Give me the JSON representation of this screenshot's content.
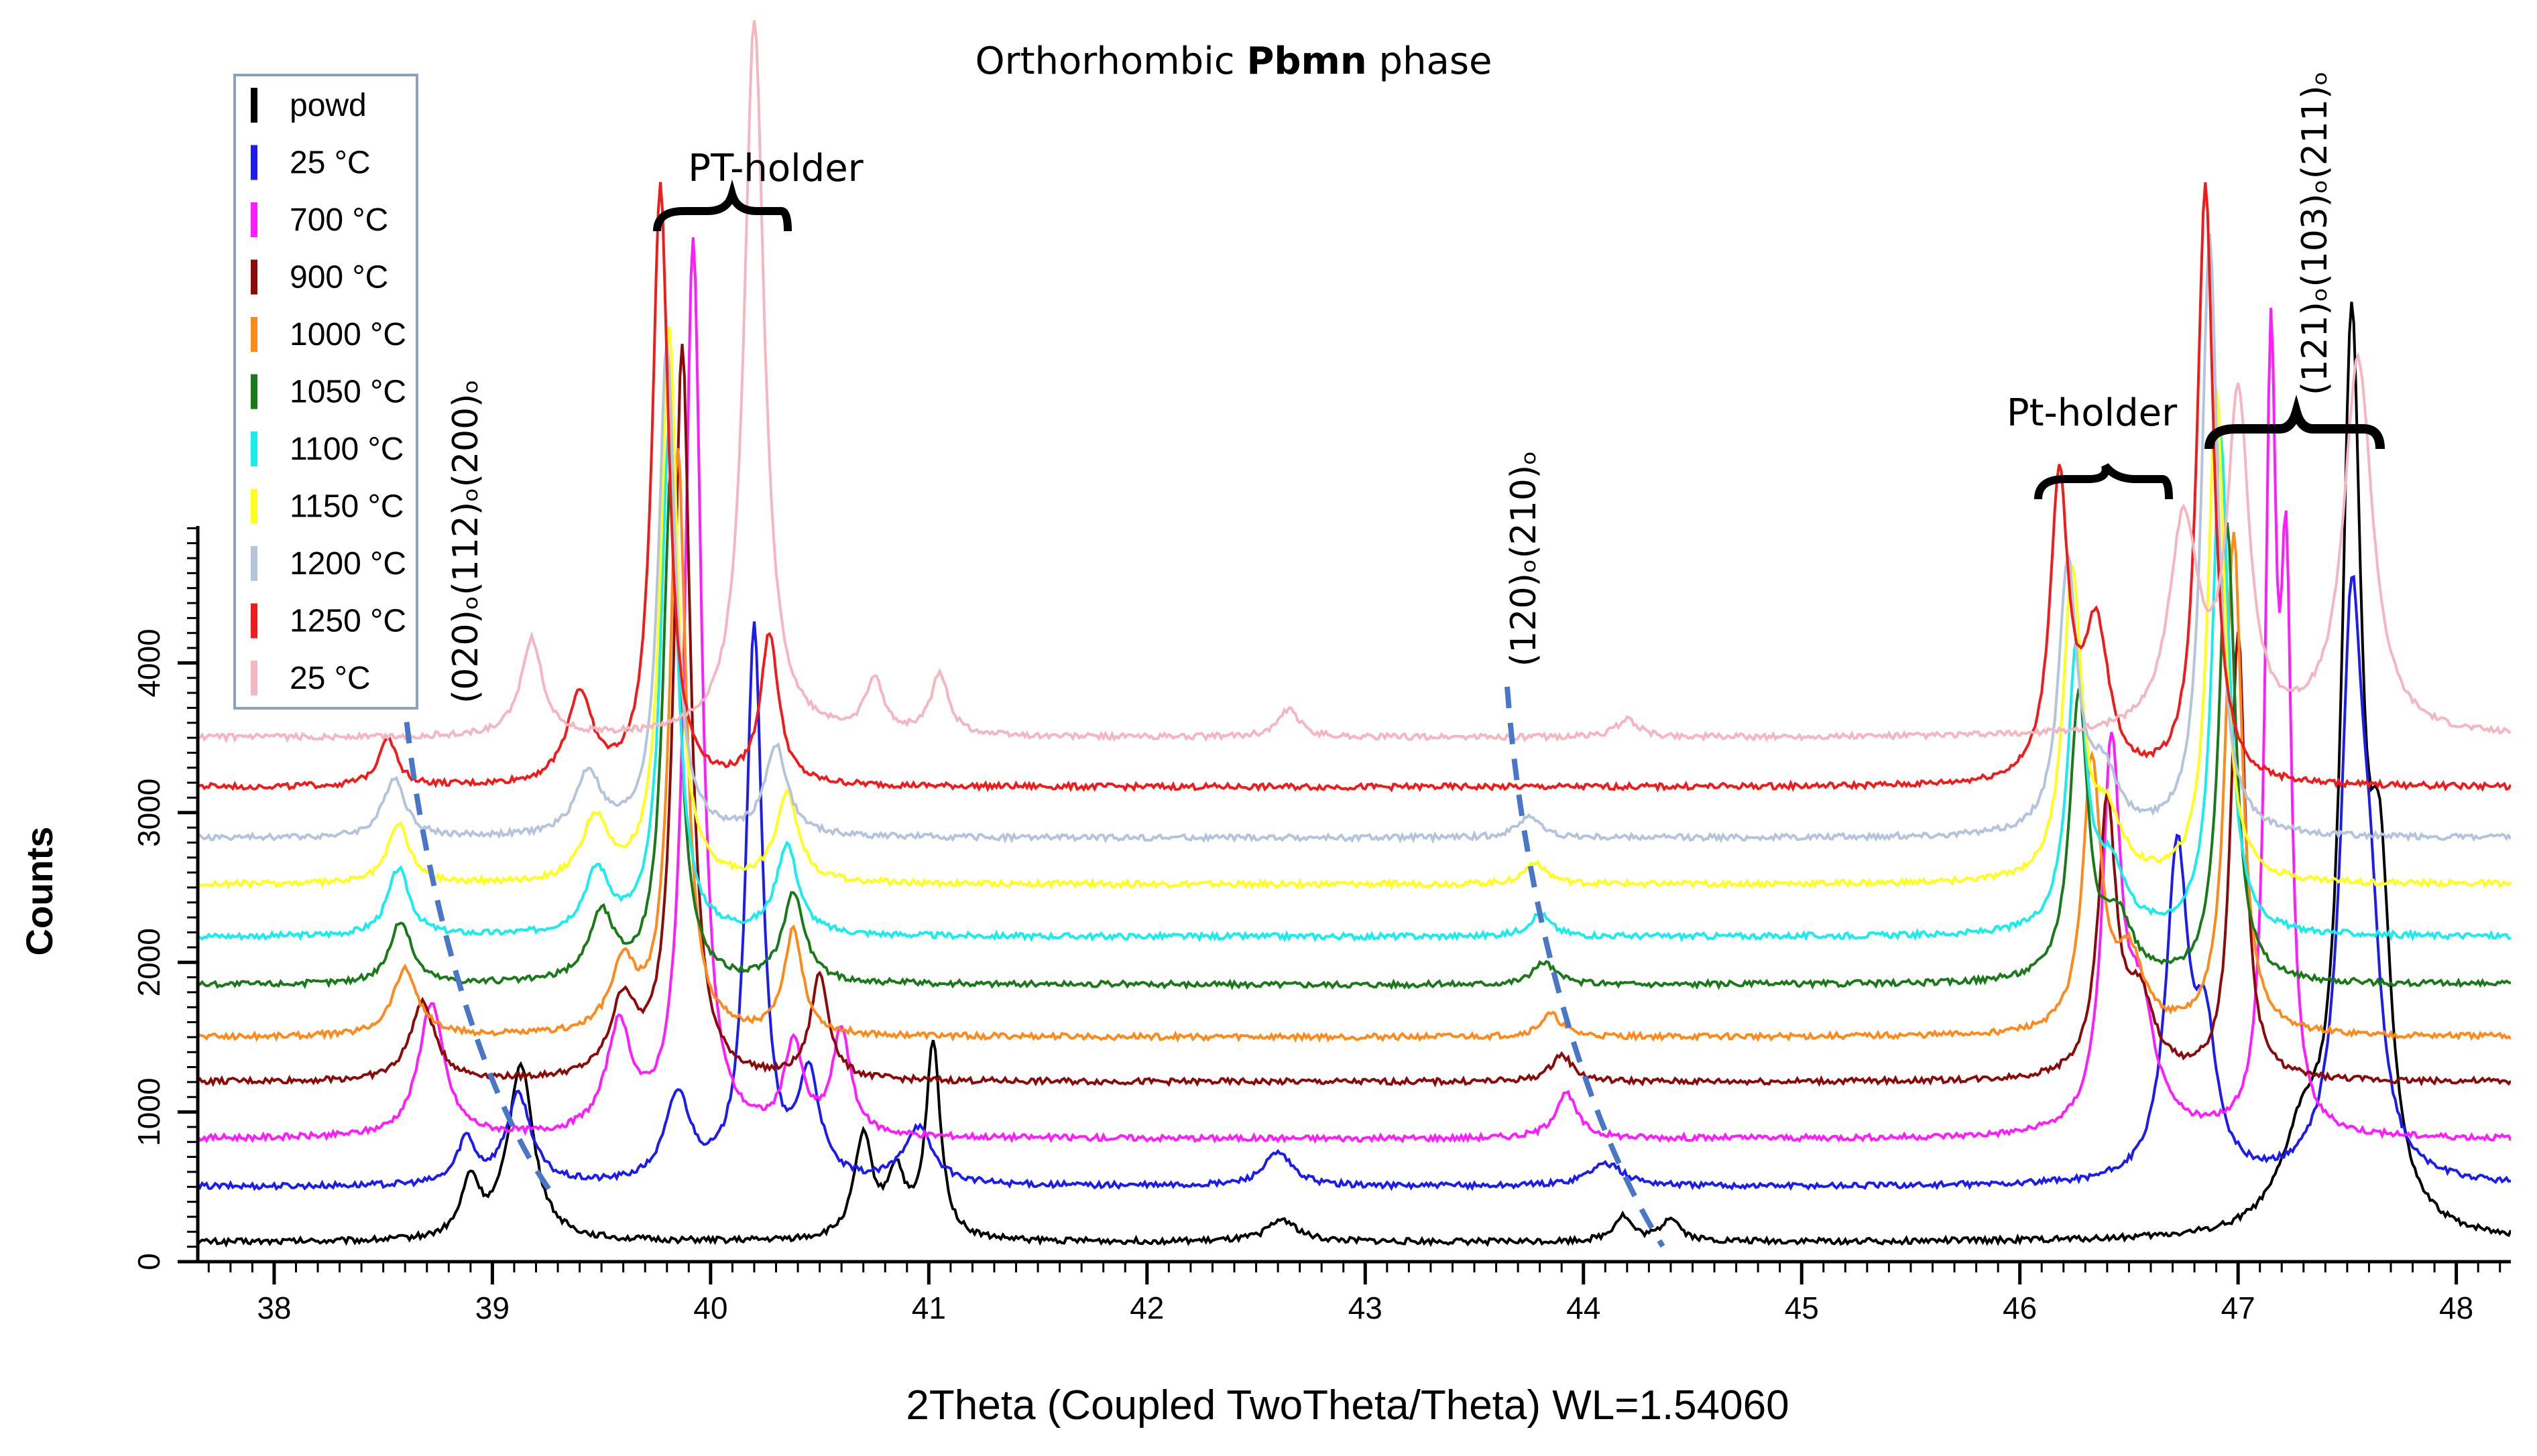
{
  "chart_data": {
    "type": "line",
    "title_parts": [
      "Orthorhombic ",
      "Pbmn",
      " phase"
    ],
    "xlabel": "2Theta (Coupled TwoTheta/Theta) WL=1.54060",
    "ylabel": "Counts",
    "xlim": [
      37.65,
      48.25
    ],
    "ylim": [
      0,
      5000
    ],
    "x_ticks": [
      "38",
      "39",
      "40",
      "41",
      "42",
      "43",
      "44",
      "45",
      "46",
      "47",
      "48"
    ],
    "x_tick_values": [
      38,
      39,
      40,
      41,
      42,
      43,
      44,
      45,
      46,
      47,
      48
    ],
    "y_ticks": [
      "0",
      "1000",
      "2000",
      "3000",
      "4000"
    ],
    "y_tick_values": [
      0,
      1000,
      2000,
      3000,
      4000
    ],
    "grid": false,
    "legend_position": "top-left",
    "series": [
      {
        "name": "powd",
        "color": "#000000",
        "baseline": 130,
        "peaks": [
          [
            38.9,
            380,
            0.05
          ],
          [
            39.13,
            1180,
            0.07
          ],
          [
            40.7,
            680,
            0.05
          ],
          [
            40.85,
            420,
            0.05
          ],
          [
            41.02,
            1300,
            0.04
          ],
          [
            42.62,
            150,
            0.08
          ],
          [
            44.18,
            170,
            0.05
          ],
          [
            44.4,
            160,
            0.05
          ],
          [
            47.3,
            600,
            0.12
          ],
          [
            47.52,
            5800,
            0.055
          ],
          [
            47.65,
            2000,
            0.06
          ]
        ]
      },
      {
        "name": "25 °C",
        "color": "#1c1cf0",
        "baseline": 500,
        "peaks": [
          [
            38.88,
            300,
            0.05
          ],
          [
            39.12,
            600,
            0.07
          ],
          [
            39.85,
            580,
            0.07
          ],
          [
            40.2,
            3700,
            0.045
          ],
          [
            40.45,
            700,
            0.06
          ],
          [
            40.95,
            380,
            0.08
          ],
          [
            42.6,
            220,
            0.08
          ],
          [
            44.1,
            150,
            0.1
          ],
          [
            46.72,
            2180,
            0.06
          ],
          [
            46.85,
            900,
            0.06
          ],
          [
            47.52,
            3600,
            0.06
          ],
          [
            47.6,
            1300,
            0.06
          ]
        ]
      },
      {
        "name": "700 °C",
        "color": "#ff1cff",
        "baseline": 820,
        "peaks": [
          [
            38.72,
            900,
            0.07
          ],
          [
            39.58,
            700,
            0.07
          ],
          [
            39.92,
            6000,
            0.045
          ],
          [
            40.38,
            600,
            0.05
          ],
          [
            40.6,
            700,
            0.05
          ],
          [
            43.92,
            300,
            0.06
          ],
          [
            46.42,
            2500,
            0.05
          ],
          [
            46.55,
            800,
            0.08
          ],
          [
            47.22,
            3400,
            0.03
          ],
          [
            47.15,
            5000,
            0.03
          ]
        ]
      },
      {
        "name": "900 °C",
        "color": "#8b0a0a",
        "baseline": 1200,
        "peaks": [
          [
            38.68,
            520,
            0.07
          ],
          [
            39.6,
            500,
            0.07
          ],
          [
            39.87,
            4900,
            0.045
          ],
          [
            40.5,
            700,
            0.05
          ],
          [
            43.9,
            180,
            0.06
          ],
          [
            46.4,
            1800,
            0.05
          ],
          [
            46.55,
            500,
            0.08
          ],
          [
            47.0,
            3000,
            0.04
          ]
        ]
      },
      {
        "name": "1000 °C",
        "color": "#ff8a1c",
        "baseline": 1500,
        "peaks": [
          [
            38.6,
            450,
            0.07
          ],
          [
            39.6,
            450,
            0.07
          ],
          [
            39.85,
            3900,
            0.045
          ],
          [
            40.38,
            700,
            0.05
          ],
          [
            43.85,
            150,
            0.06
          ],
          [
            46.33,
            1800,
            0.05
          ],
          [
            46.5,
            500,
            0.08
          ],
          [
            46.98,
            3350,
            0.045
          ]
        ]
      },
      {
        "name": "1050 °C",
        "color": "#1a7a1a",
        "baseline": 1850,
        "peaks": [
          [
            38.58,
            420,
            0.06
          ],
          [
            39.5,
            450,
            0.07
          ],
          [
            39.82,
            3450,
            0.045
          ],
          [
            40.38,
            600,
            0.06
          ],
          [
            43.82,
            150,
            0.06
          ],
          [
            46.27,
            1900,
            0.05
          ],
          [
            46.45,
            400,
            0.08
          ],
          [
            46.95,
            3050,
            0.045
          ]
        ]
      },
      {
        "name": "1100 °C",
        "color": "#19ecec",
        "baseline": 2170,
        "peaks": [
          [
            38.57,
            450,
            0.06
          ],
          [
            39.48,
            420,
            0.07
          ],
          [
            39.81,
            3400,
            0.045
          ],
          [
            40.35,
            600,
            0.06
          ],
          [
            43.8,
            150,
            0.06
          ],
          [
            46.26,
            1900,
            0.05
          ],
          [
            46.42,
            400,
            0.08
          ],
          [
            46.92,
            3350,
            0.045
          ]
        ]
      },
      {
        "name": "1150 °C",
        "color": "#ffff1c",
        "baseline": 2520,
        "peaks": [
          [
            38.57,
            400,
            0.06
          ],
          [
            39.47,
            420,
            0.07
          ],
          [
            39.81,
            3700,
            0.045
          ],
          [
            40.35,
            600,
            0.06
          ],
          [
            43.78,
            150,
            0.06
          ],
          [
            46.24,
            2050,
            0.05
          ],
          [
            46.4,
            400,
            0.08
          ],
          [
            46.9,
            3300,
            0.045
          ]
        ]
      },
      {
        "name": "1200 °C",
        "color": "#b4c4dc",
        "baseline": 2830,
        "peaks": [
          [
            38.55,
            400,
            0.06
          ],
          [
            39.44,
            420,
            0.07
          ],
          [
            39.8,
            3300,
            0.045
          ],
          [
            40.3,
            600,
            0.06
          ],
          [
            43.75,
            150,
            0.06
          ],
          [
            46.22,
            1800,
            0.05
          ],
          [
            46.38,
            400,
            0.08
          ],
          [
            46.87,
            4000,
            0.045
          ]
        ]
      },
      {
        "name": "1250 °C",
        "color": "#f01c1c",
        "baseline": 3170,
        "peaks": [
          [
            38.52,
            330,
            0.05
          ],
          [
            39.4,
            600,
            0.07
          ],
          [
            39.77,
            4000,
            0.045
          ],
          [
            40.27,
            1000,
            0.05
          ],
          [
            46.18,
            2000,
            0.05
          ],
          [
            46.35,
            1000,
            0.07
          ],
          [
            46.85,
            4000,
            0.045
          ]
        ]
      },
      {
        "name": "25 °C",
        "color": "#f4b6c0",
        "baseline": 3500,
        "peaks": [
          [
            39.18,
            650,
            0.06
          ],
          [
            40.2,
            4800,
            0.055
          ],
          [
            40.75,
            350,
            0.05
          ],
          [
            41.05,
            400,
            0.05
          ],
          [
            42.65,
            180,
            0.06
          ],
          [
            44.2,
            120,
            0.06
          ],
          [
            46.75,
            1400,
            0.08
          ],
          [
            47.0,
            2200,
            0.06
          ],
          [
            47.55,
            2500,
            0.08
          ]
        ]
      }
    ],
    "annotations": {
      "pt_holder_left": "PT-holder",
      "pt_holder_right": "Pt-holder",
      "peak_label_1": "(020)ₒ(112)ₒ(200)ₒ",
      "peak_label_2": "(120)ₒ(210)ₒ",
      "peak_label_3": "(121)ₒ(103)ₒ(211)ₒ"
    }
  }
}
